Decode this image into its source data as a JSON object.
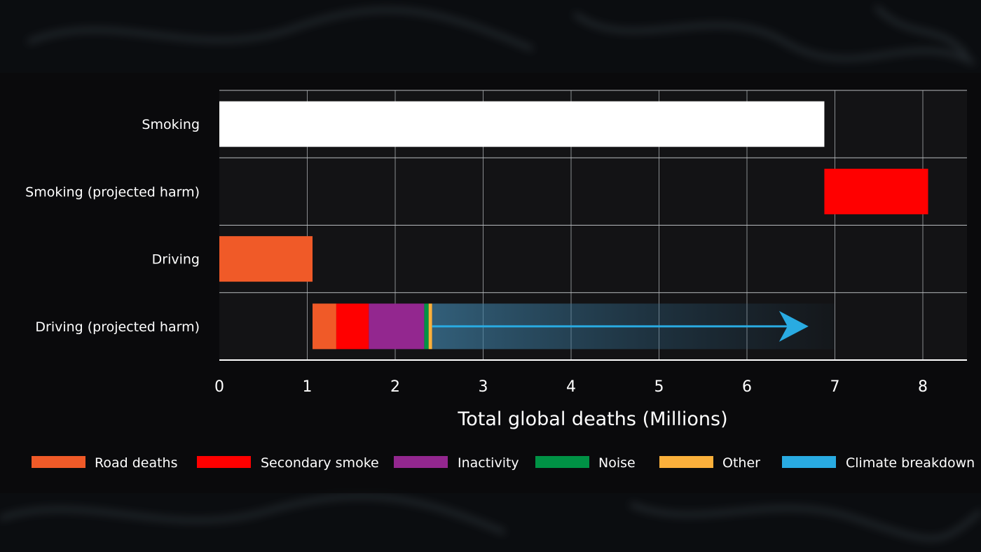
{
  "chart_data": {
    "type": "bar",
    "orientation": "horizontal",
    "stacked": true,
    "title": "",
    "xlabel": "Total global deaths (Millions)",
    "ylabel": "",
    "xlim": [
      0,
      8.5
    ],
    "xticks": [
      0,
      1,
      2,
      3,
      4,
      5,
      6,
      7,
      8
    ],
    "grid": true,
    "legend_position": "bottom",
    "categories": [
      "Smoking",
      "Smoking (projected harm)",
      "Driving",
      "Driving (projected harm)"
    ],
    "bars": [
      {
        "category": "Smoking",
        "segments": [
          {
            "series": "Smoking",
            "start": 0,
            "end": 6.88,
            "color": "#ffffff"
          }
        ]
      },
      {
        "category": "Smoking (projected harm)",
        "segments": [
          {
            "series": "Secondary smoke",
            "start": 6.88,
            "end": 8.06,
            "color": "#ff0000"
          }
        ]
      },
      {
        "category": "Driving",
        "segments": [
          {
            "series": "Road deaths",
            "start": 0,
            "end": 1.06,
            "color": "#f05a28"
          }
        ]
      },
      {
        "category": "Driving (projected harm)",
        "segments": [
          {
            "series": "Road deaths",
            "start": 1.06,
            "end": 1.33,
            "color": "#f05a28"
          },
          {
            "series": "Secondary smoke",
            "start": 1.33,
            "end": 1.7,
            "color": "#ff0000"
          },
          {
            "series": "Inactivity",
            "start": 1.7,
            "end": 2.33,
            "color": "#93278f"
          },
          {
            "series": "Noise",
            "start": 2.33,
            "end": 2.38,
            "color": "#009245"
          },
          {
            "series": "Other",
            "start": 2.38,
            "end": 2.42,
            "color": "#fbb03b"
          }
        ]
      }
    ],
    "climate_arrow": {
      "series": "Climate breakdown",
      "start": 2.42,
      "end": 6.7,
      "band_end": 7.0,
      "color": "#29abe2"
    },
    "legend": [
      {
        "name": "Road deaths",
        "color": "#f05a28"
      },
      {
        "name": "Secondary smoke",
        "color": "#ff0000"
      },
      {
        "name": "Inactivity",
        "color": "#93278f"
      },
      {
        "name": "Noise",
        "color": "#009245"
      },
      {
        "name": "Other",
        "color": "#fbb03b"
      },
      {
        "name": "Climate breakdown",
        "color": "#29abe2"
      }
    ]
  }
}
